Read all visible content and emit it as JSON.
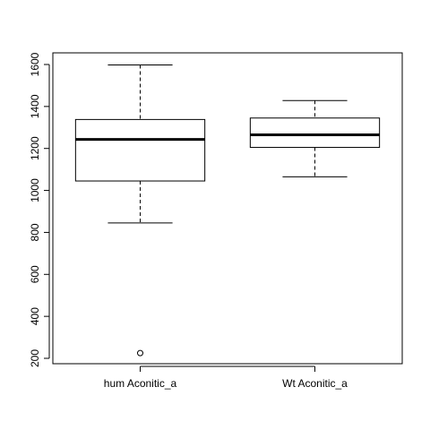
{
  "chart_data": {
    "type": "box",
    "title": "",
    "xlabel": "",
    "ylabel": "",
    "ylim": [
      180,
      1650
    ],
    "yticks": [
      200,
      400,
      600,
      800,
      1000,
      1200,
      1400,
      1600
    ],
    "categories": [
      "hum Aconitic_a",
      "Wt Aconitic_a"
    ],
    "boxes": [
      {
        "label": "hum Aconitic_a",
        "whisker_low": 845,
        "q1": 1045,
        "median": 1243,
        "q3": 1338,
        "whisker_high": 1598,
        "outliers": [
          225
        ]
      },
      {
        "label": "Wt Aconitic_a",
        "whisker_low": 1065,
        "q1": 1205,
        "median": 1265,
        "q3": 1345,
        "whisker_high": 1428,
        "outliers": []
      }
    ],
    "grid": false,
    "legend": "none"
  }
}
